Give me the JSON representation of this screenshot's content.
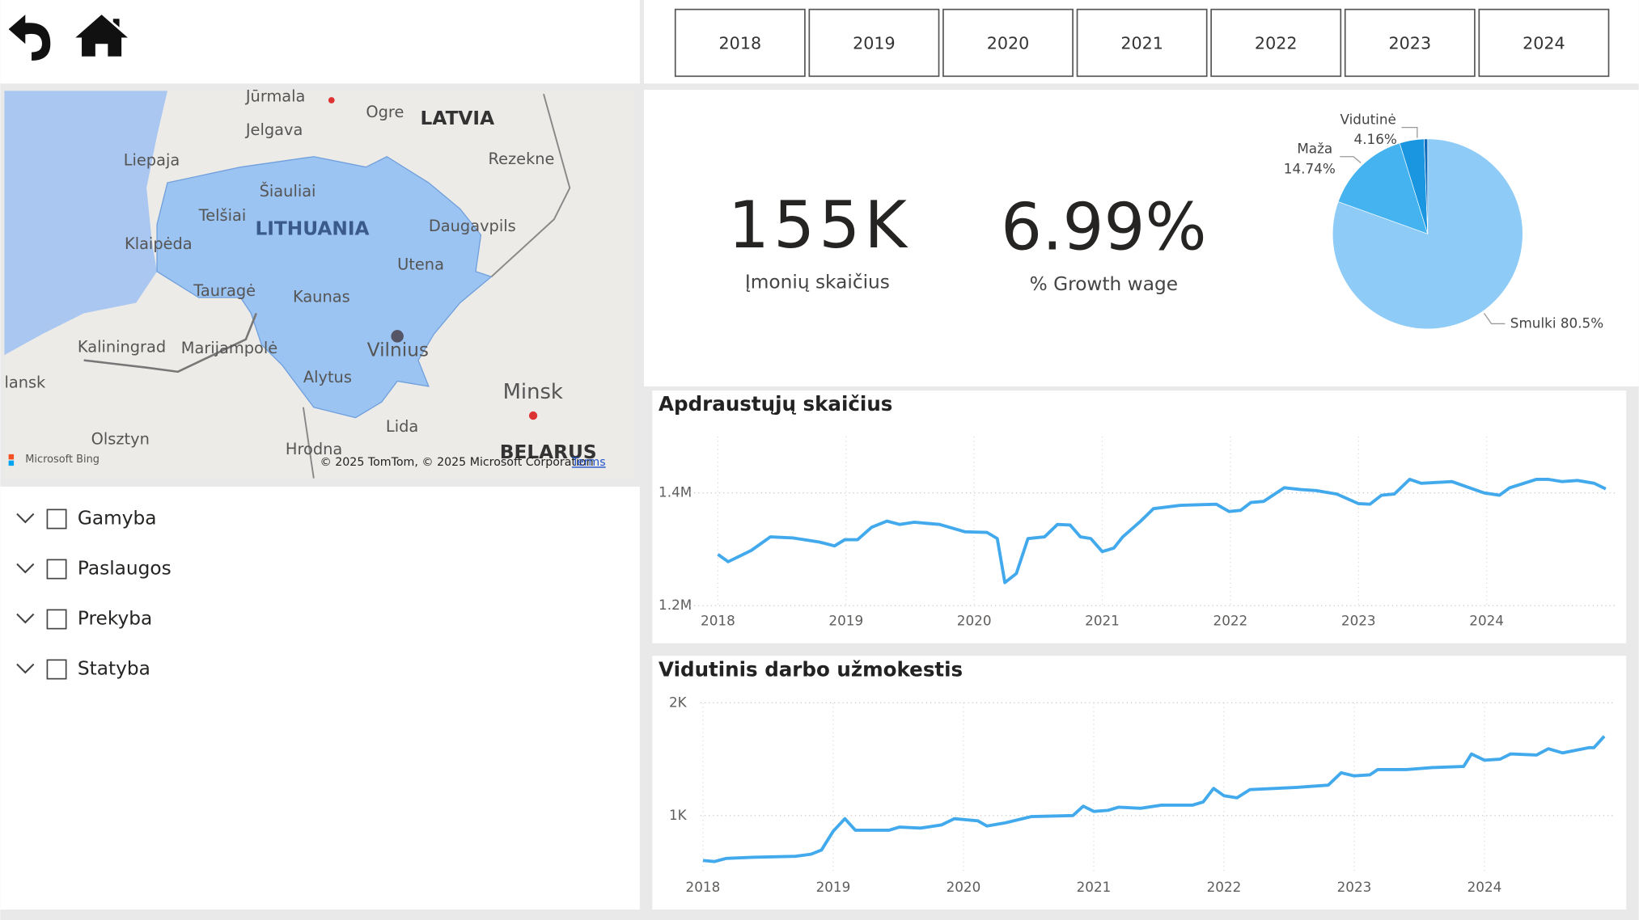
{
  "year_buttons": [
    "2018",
    "2019",
    "2020",
    "2021",
    "2022",
    "2023",
    "2024"
  ],
  "kpis": [
    {
      "value": "155K",
      "label": "Įmonių skaičius"
    },
    {
      "value": "6.99%",
      "label": "% Growth wage"
    }
  ],
  "filters": [
    "Gamyba",
    "Paslaugos",
    "Prekyba",
    "Statyba"
  ],
  "map": {
    "labels": [
      "Jūrmala",
      "Ogre",
      "LATVIA",
      "Jelgava",
      "Liepaja",
      "Rezekne",
      "Šiauliai",
      "Telšiai",
      "LITHUANIA",
      "Daugavpils",
      "Klaipėda",
      "Utena",
      "Tauragė",
      "Kaunas",
      "Kaliningrad",
      "Marijampolė",
      "Vilnius",
      "Alytus",
      "Minsk",
      "lansk",
      "Lida",
      "Olsztyn",
      "Hrodna",
      "BELARUS"
    ],
    "brand": "Microsoft Bing",
    "copyright": "© 2025 TomTom, © 2025 Microsoft Corporation",
    "terms": "Terms"
  },
  "chart_data": [
    {
      "type": "pie",
      "categories": [
        "Smulki",
        "Maža",
        "Vidutinė",
        null
      ],
      "values": [
        80.5,
        14.74,
        4.16,
        0.6
      ],
      "value_labels": [
        "80.5%",
        "14.74%",
        "4.16%",
        null
      ],
      "colors": [
        "#8ecbf7",
        "#44b3f0",
        "#1a95e0",
        "#0f6cbd"
      ]
    },
    {
      "type": "line",
      "title": "Apdraustųjų skaičius",
      "color": "#41a9ec",
      "grid": true,
      "x": [
        2018.0,
        2018.08,
        2018.26,
        2018.41,
        2018.59,
        2018.79,
        2018.91,
        2018.99,
        2019.09,
        2019.2,
        2019.32,
        2019.42,
        2019.53,
        2019.73,
        2019.93,
        2020.1,
        2020.18,
        2020.24,
        2020.33,
        2020.42,
        2020.55,
        2020.65,
        2020.75,
        2020.83,
        2020.91,
        2021.0,
        2021.09,
        2021.16,
        2021.3,
        2021.4,
        2021.61,
        2021.89,
        2021.99,
        2022.08,
        2022.16,
        2022.26,
        2022.42,
        2022.55,
        2022.67,
        2022.83,
        2023.0,
        2023.09,
        2023.18,
        2023.28,
        2023.4,
        2023.49,
        2023.73,
        2023.98,
        2024.1,
        2024.18,
        2024.39,
        2024.48,
        2024.59,
        2024.71,
        2024.84,
        2024.93
      ],
      "values": [
        1291000,
        1278000,
        1298000,
        1322000,
        1320000,
        1313000,
        1306000,
        1317000,
        1317000,
        1339000,
        1350000,
        1344000,
        1348000,
        1344000,
        1331000,
        1330000,
        1319000,
        1241000,
        1257000,
        1319000,
        1322000,
        1344000,
        1343000,
        1322000,
        1319000,
        1296000,
        1302000,
        1322000,
        1350000,
        1372000,
        1378000,
        1380000,
        1367000,
        1369000,
        1383000,
        1385000,
        1409000,
        1406000,
        1404000,
        1398000,
        1381000,
        1380000,
        1396000,
        1398000,
        1424000,
        1417000,
        1420000,
        1400000,
        1396000,
        1409000,
        1424000,
        1424000,
        1420000,
        1422000,
        1417000,
        1407000
      ],
      "xlim": [
        2017.7,
        2025.0
      ],
      "xticks": [
        2018,
        2019,
        2020,
        2021,
        2022,
        2023,
        2024
      ],
      "ylim": [
        1200000,
        1500000
      ],
      "yticks": [
        {
          "value": 1200000,
          "label": "1.2M"
        },
        {
          "value": 1400000,
          "label": "1.4M"
        }
      ]
    },
    {
      "type": "line",
      "title": "Vidutinis darbo užmokestis",
      "color": "#41a9ec",
      "grid": true,
      "x": [
        2018.0,
        2018.09,
        2018.18,
        2018.38,
        2018.71,
        2018.83,
        2018.91,
        2019.0,
        2019.09,
        2019.17,
        2019.43,
        2019.51,
        2019.67,
        2019.83,
        2019.93,
        2020.11,
        2020.18,
        2020.32,
        2020.52,
        2020.84,
        2020.92,
        2021.0,
        2021.11,
        2021.19,
        2021.36,
        2021.52,
        2021.76,
        2021.84,
        2021.92,
        2022.0,
        2022.1,
        2022.2,
        2022.4,
        2022.56,
        2022.8,
        2022.9,
        2023.0,
        2023.12,
        2023.18,
        2023.4,
        2023.6,
        2023.84,
        2023.9,
        2024.0,
        2024.12,
        2024.2,
        2024.4,
        2024.49,
        2024.6,
        2024.8,
        2024.84,
        2024.92
      ],
      "values": [
        602,
        593,
        620,
        630,
        639,
        657,
        694,
        861,
        972,
        870,
        870,
        898,
        889,
        917,
        972,
        954,
        907,
        935,
        991,
        1000,
        1083,
        1037,
        1046,
        1074,
        1065,
        1093,
        1093,
        1120,
        1241,
        1176,
        1157,
        1231,
        1241,
        1250,
        1269,
        1380,
        1352,
        1361,
        1407,
        1407,
        1426,
        1435,
        1546,
        1491,
        1500,
        1546,
        1537,
        1593,
        1556,
        1602,
        1602,
        1704
      ],
      "xlim": [
        2017.9,
        2025.0
      ],
      "xticks": [
        2018,
        2019,
        2020,
        2021,
        2022,
        2023,
        2024
      ],
      "ylim": [
        500,
        2000
      ],
      "yticks": [
        {
          "value": 1000,
          "label": "1K"
        },
        {
          "value": 2000,
          "label": "2K"
        }
      ]
    }
  ]
}
